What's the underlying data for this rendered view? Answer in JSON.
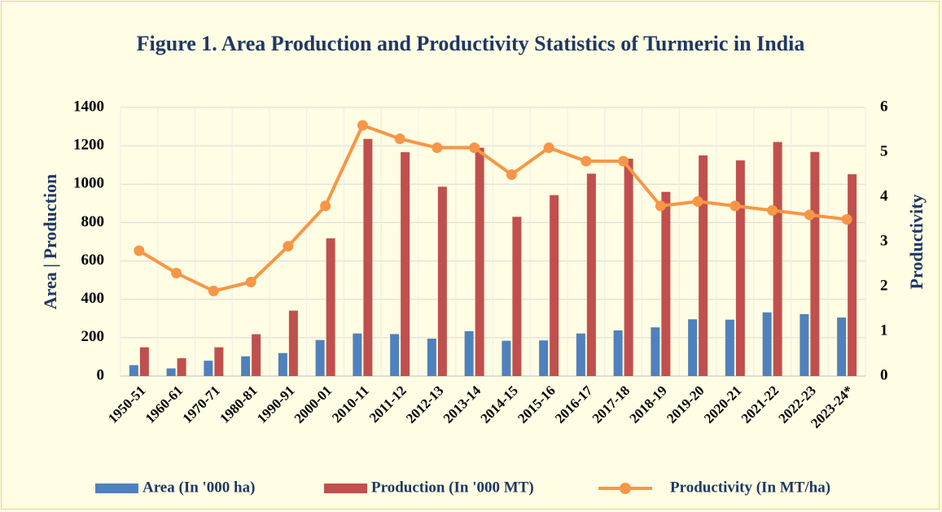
{
  "chart_data": {
    "type": "bar",
    "title": "Figure 1. Area Production and Productivity Statistics of Turmeric in India",
    "y_label": "Area | Production",
    "y2_label": "Productivity",
    "categories": [
      "1950-51",
      "1960-61",
      "1970-71",
      "1980-81",
      "1990-91",
      "2000-01",
      "2010-11",
      "2011-12",
      "2012-13",
      "2013-14",
      "2014-15",
      "2015-16",
      "2016-17",
      "2017-18",
      "2018-19",
      "2019-20",
      "2020-21",
      "2021-22",
      "2022-23",
      "2023-24*"
    ],
    "series": [
      {
        "name": "Area (In '000 ha)",
        "color": "#4f81bd",
        "values": [
          57,
          40,
          80,
          103,
          120,
          188,
          222,
          219,
          195,
          234,
          184,
          186,
          222,
          238,
          254,
          296,
          294,
          332,
          323,
          305
        ]
      },
      {
        "name": "Production (In '000 MT)",
        "color": "#c0504d",
        "values": [
          150,
          93,
          150,
          218,
          341,
          718,
          1236,
          1167,
          987,
          1190,
          830,
          943,
          1055,
          1133,
          960,
          1150,
          1124,
          1220,
          1168,
          1052
        ]
      },
      {
        "name": "Productivity (In MT/ha)",
        "color": "#f79646",
        "type": "line",
        "axis": "y2",
        "values": [
          2.8,
          2.3,
          1.9,
          2.1,
          2.9,
          3.8,
          5.6,
          5.3,
          5.1,
          5.1,
          4.5,
          5.1,
          4.8,
          4.8,
          3.8,
          3.9,
          3.8,
          3.7,
          3.6,
          3.5
        ]
      }
    ],
    "ylim": [
      0,
      1400
    ],
    "yticks": [
      0,
      200,
      400,
      600,
      800,
      1000,
      1200,
      1400
    ],
    "y2lim": [
      0,
      6
    ],
    "y2ticks": [
      0,
      1,
      2,
      3,
      4,
      5,
      6
    ],
    "grid": true,
    "legend": "bottom"
  }
}
